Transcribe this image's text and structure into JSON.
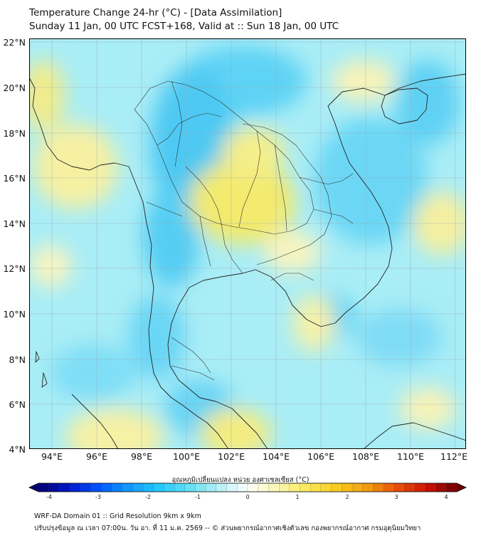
{
  "header": {
    "title_line1": "Temperature Change 24-hr (°C) - [Data Assimilation]",
    "title_line2": "Sunday 11 Jan, 00 UTC FCST+168, Valid at :: Sun 18 Jan, 00 UTC"
  },
  "map": {
    "lat_labels": [
      "22°N",
      "20°N",
      "18°N",
      "16°N",
      "14°N",
      "12°N",
      "10°N",
      "8°N",
      "6°N",
      "4°N"
    ],
    "lon_labels": [
      "94°E",
      "96°E",
      "98°E",
      "100°E",
      "102°E",
      "104°E",
      "106°E",
      "108°E",
      "110°E",
      "112°E"
    ],
    "lat_range": [
      4,
      22
    ],
    "lon_range": [
      93,
      112.5
    ],
    "grid": true
  },
  "colorbar": {
    "title": "อุณหภูมิเปลี่ยนแปลง หน่วย องศาเซลเซียส (°C)",
    "tick_labels": [
      "-4",
      "-3",
      "-2",
      "-1",
      "0",
      "1",
      "2",
      "3",
      "4"
    ],
    "range": [
      -4,
      4
    ],
    "colors": [
      "#00006e",
      "#0016c8",
      "#0055ff",
      "#1199ff",
      "#22c8ff",
      "#5ee0f2",
      "#b2f0f5",
      "#ffffff",
      "#fbf6b0",
      "#fbe95a",
      "#f8cc1e",
      "#f39b0e",
      "#e9500a",
      "#cc1206",
      "#6e0000"
    ]
  },
  "footer": {
    "line1": "WRF-DA Domain 01 :: Grid Resolution 9km x 9km",
    "line2": "ปรับปรุงข้อมูล ณ เวลา 07:00น. วัน อา. ที่ 11 ม.ค. 2569 -- © ส่วนพยากรณ์อากาศเชิงตัวเลข กองพยากรณ์อากาศ กรมอุตุนิยมวิทยา"
  }
}
